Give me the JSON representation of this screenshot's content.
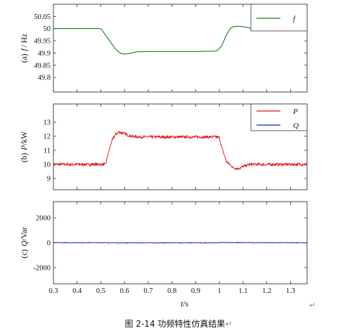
{
  "caption": "图 2-14 功频特性仿真结果",
  "return_mark": "↵",
  "chart_data": [
    {
      "type": "line",
      "panel_label": "(a)",
      "ylabel": "f / Hz",
      "ylabel_parts": {
        "var": "f",
        "unit": "/ Hz"
      },
      "ylim": [
        49.74,
        50.1
      ],
      "yticks": [
        49.8,
        49.85,
        49.9,
        49.95,
        50,
        50.05
      ],
      "ytick_labels": [
        "49.8",
        "49.85",
        "49.9",
        "49.95",
        "50",
        "50.05"
      ],
      "xlim": [
        0.3,
        1.37
      ],
      "legend_position": "top-right",
      "series": [
        {
          "name": "f",
          "color": "#1a7a1a",
          "x": [
            0.3,
            0.5,
            0.53,
            0.56,
            0.58,
            0.6,
            0.63,
            0.65,
            0.7,
            0.8,
            0.9,
            0.99,
            1.01,
            1.03,
            1.05,
            1.07,
            1.1,
            1.13,
            1.15,
            1.2,
            1.3,
            1.37
          ],
          "y": [
            50.0,
            50.0,
            49.96,
            49.918,
            49.9,
            49.895,
            49.9,
            49.905,
            49.906,
            49.906,
            49.906,
            49.908,
            49.93,
            49.975,
            50.005,
            50.01,
            50.008,
            50.002,
            49.998,
            49.998,
            49.998,
            49.998
          ],
          "noise": 0
        }
      ]
    },
    {
      "type": "line",
      "panel_label": "(b)",
      "ylabel": "P/kW",
      "ylabel_parts": {
        "var": "P",
        "unit": "/kW"
      },
      "ylim": [
        8.2,
        14.3
      ],
      "yticks": [
        9,
        10,
        11,
        12,
        13
      ],
      "ytick_labels": [
        "9",
        "10",
        "11",
        "12",
        "13"
      ],
      "xlim": [
        0.3,
        1.37
      ],
      "legend_position": "top-right",
      "series": [
        {
          "name": "P",
          "color": "#e01010",
          "x": [
            0.3,
            0.52,
            0.53,
            0.545,
            0.56,
            0.575,
            0.59,
            0.61,
            0.63,
            0.66,
            0.7,
            0.8,
            0.9,
            0.99,
            1.0,
            1.01,
            1.03,
            1.06,
            1.08,
            1.1,
            1.13,
            1.2,
            1.3,
            1.37
          ],
          "y": [
            10.0,
            10.0,
            10.7,
            11.6,
            12.1,
            12.3,
            12.25,
            12.1,
            12.0,
            11.95,
            11.95,
            11.95,
            11.95,
            11.95,
            11.9,
            11.2,
            10.2,
            9.75,
            9.7,
            9.85,
            10.0,
            10.0,
            10.0,
            10.0
          ],
          "noise": 0.1
        },
        {
          "name": "Q",
          "color": "#1020d0",
          "x": [],
          "y": [],
          "noise": 0
        }
      ]
    },
    {
      "type": "line",
      "panel_label": "(c)",
      "ylabel": "Q/Var",
      "ylabel_parts": {
        "var": "Q",
        "unit": "/Var"
      },
      "ylim": [
        -3300,
        3300
      ],
      "yticks": [
        -2000,
        0,
        2000
      ],
      "ytick_labels": [
        "-2000",
        "0",
        "2000"
      ],
      "xlim": [
        0.3,
        1.37
      ],
      "xticks": [
        0.3,
        0.4,
        0.5,
        0.6,
        0.7,
        0.8,
        0.9,
        1,
        1.1,
        1.2,
        1.3
      ],
      "xtick_labels": [
        "0.3",
        "0.4",
        "0.5",
        "0.6",
        "0.7",
        "0.8",
        "0.9",
        "1",
        "1.1",
        "1.2",
        "1.3"
      ],
      "xlabel": "t/s",
      "xlabel_parts": {
        "var": "t",
        "unit": "/s"
      },
      "series": [
        {
          "name": "Q",
          "color": "#1020d0",
          "x": [
            0.3,
            0.52,
            0.53,
            0.7,
            0.99,
            1.01,
            1.2,
            1.37
          ],
          "y": [
            0,
            0,
            -10,
            -10,
            -10,
            10,
            0,
            0
          ],
          "noise": 25
        }
      ]
    }
  ]
}
